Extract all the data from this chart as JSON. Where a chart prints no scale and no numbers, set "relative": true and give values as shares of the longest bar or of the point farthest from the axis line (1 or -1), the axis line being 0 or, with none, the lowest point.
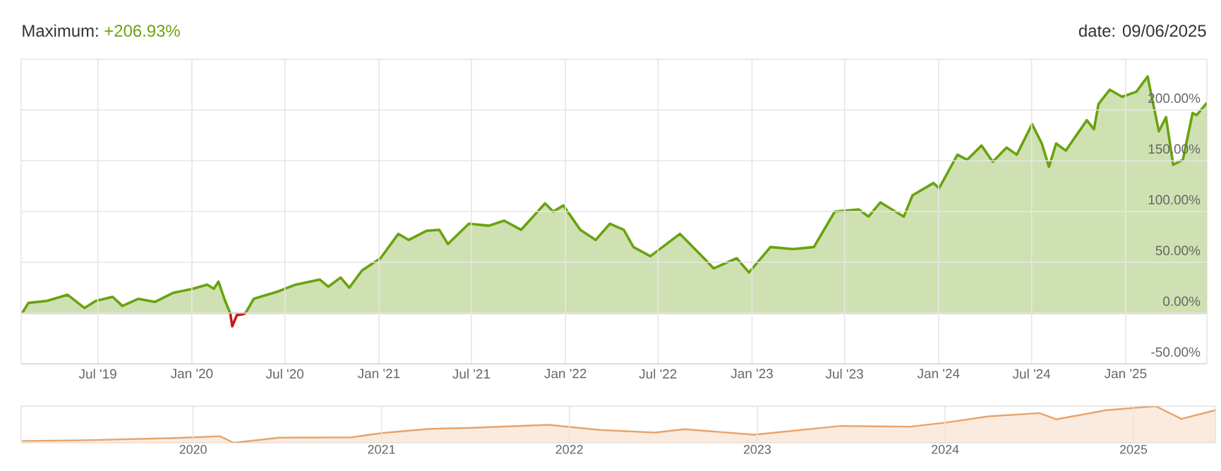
{
  "chart_data": [
    {
      "type": "area",
      "title": "Maximum:",
      "subtitle": "+206.93%",
      "annotations": [
        "date: 09/06/2025"
      ],
      "x": [
        "2019-02-03",
        "2019-02-15",
        "2019-03-23",
        "2019-05-03",
        "2019-06-05",
        "2019-06-27",
        "2019-07-30",
        "2019-08-18",
        "2019-09-18",
        "2019-10-21",
        "2019-11-26",
        "2020-01-03",
        "2020-01-31",
        "2020-02-13",
        "2020-02-22",
        "2020-03-06",
        "2020-03-16",
        "2020-03-20",
        "2020-03-29",
        "2020-04-11",
        "2020-04-15",
        "2020-05-01",
        "2020-06-16",
        "2020-07-22",
        "2020-09-07",
        "2020-09-24",
        "2020-10-18",
        "2020-11-04",
        "2020-11-29",
        "2021-01-04",
        "2021-02-08",
        "2021-02-28",
        "2021-04-04",
        "2021-04-29",
        "2021-05-16",
        "2021-06-26",
        "2021-08-04",
        "2021-09-03",
        "2021-10-06",
        "2021-11-22",
        "2021-12-08",
        "2021-12-28",
        "2022-01-30",
        "2022-03-01",
        "2022-03-29",
        "2022-04-25",
        "2022-05-14",
        "2022-06-16",
        "2022-08-13",
        "2022-09-29",
        "2022-10-18",
        "2022-12-02",
        "2022-12-26",
        "2023-02-06",
        "2023-03-22",
        "2023-05-02",
        "2023-06-12",
        "2023-07-29",
        "2023-08-17",
        "2023-09-09",
        "2023-10-25",
        "2023-11-11",
        "2023-12-22",
        "2024-01-02",
        "2024-02-07",
        "2024-02-26",
        "2024-03-25",
        "2024-04-16",
        "2024-05-13",
        "2024-06-02",
        "2024-07-02",
        "2024-07-21",
        "2024-08-04",
        "2024-08-18",
        "2024-09-06",
        "2024-10-17",
        "2024-10-31",
        "2024-11-09",
        "2024-12-01",
        "2024-12-25",
        "2025-01-22",
        "2025-02-13",
        "2025-03-07",
        "2025-03-21",
        "2025-04-04",
        "2025-04-23",
        "2025-05-12",
        "2025-05-20",
        "2025-06-09"
      ],
      "series": [
        {
          "color": "#6aa20e",
          "values": [
            0,
            10,
            12,
            18,
            5,
            12,
            16,
            7,
            14,
            11,
            20,
            24,
            28,
            24,
            31,
            12,
            0,
            null,
            null,
            null,
            0,
            14,
            21,
            28,
            33,
            26,
            35,
            25,
            42,
            54,
            78,
            72,
            81,
            82,
            68,
            88,
            86,
            91,
            82,
            108,
            100,
            106,
            82,
            72,
            88,
            82,
            65,
            56,
            78,
            54,
            44,
            54,
            40,
            65,
            63,
            65,
            100,
            102,
            95,
            109,
            95,
            116,
            128,
            123,
            156,
            151,
            165,
            149,
            163,
            156,
            186,
            167,
            144,
            167,
            160,
            190,
            181,
            206,
            220,
            213,
            218,
            233,
            179,
            193,
            146,
            151,
            197,
            195,
            207
          ]
        },
        {
          "type": "line",
          "color": "#c41a1a",
          "x": [
            "2020-03-16",
            "2020-03-20",
            "2020-03-29",
            "2020-04-11",
            "2020-04-15"
          ],
          "values": [
            0,
            -13,
            -2,
            -1,
            0
          ]
        }
      ],
      "xlim": [
        "2019-02-01",
        "2025-06-09"
      ],
      "xticks": [
        {
          "value": "2019-07-01",
          "label": "Jul '19"
        },
        {
          "value": "2020-01-01",
          "label": "Jan '20"
        },
        {
          "value": "2020-07-01",
          "label": "Jul '20"
        },
        {
          "value": "2021-01-01",
          "label": "Jan '21"
        },
        {
          "value": "2021-07-01",
          "label": "Jul '21"
        },
        {
          "value": "2022-01-01",
          "label": "Jan '22"
        },
        {
          "value": "2022-07-01",
          "label": "Jul '22"
        },
        {
          "value": "2023-01-01",
          "label": "Jan '23"
        },
        {
          "value": "2023-07-01",
          "label": "Jul '23"
        },
        {
          "value": "2024-01-01",
          "label": "Jan '24"
        },
        {
          "value": "2024-07-01",
          "label": "Jul '24"
        },
        {
          "value": "2025-01-01",
          "label": "Jan '25"
        }
      ],
      "ylim": [
        -50,
        250
      ],
      "yticks": [
        {
          "value": -50,
          "label": "-50.00%"
        },
        {
          "value": 0,
          "label": "0.00%"
        },
        {
          "value": 50,
          "label": "50.00%"
        },
        {
          "value": 100,
          "label": "100.00%"
        },
        {
          "value": 150,
          "label": "150.00%"
        },
        {
          "value": 200,
          "label": "200.00%"
        }
      ],
      "grid": true,
      "ref_lines": [
        {
          "axis": "y",
          "value": 0,
          "color": "#b0b0b0"
        }
      ]
    },
    {
      "type": "area",
      "relative": true,
      "tick_labels": "x",
      "grid": "x",
      "x": [
        "2019-02-03",
        "2019-06-05",
        "2019-11-26",
        "2020-02-22",
        "2020-03-20",
        "2020-06-16",
        "2020-11-04",
        "2021-01-04",
        "2021-04-04",
        "2021-06-26",
        "2021-11-22",
        "2022-03-01",
        "2022-06-16",
        "2022-08-13",
        "2022-12-26",
        "2023-06-12",
        "2023-10-25",
        "2024-01-02",
        "2024-03-25",
        "2024-07-02",
        "2024-08-04",
        "2024-11-09",
        "2025-02-13",
        "2025-04-04",
        "2025-06-09"
      ],
      "series": [
        {
          "color": "#e8a36a",
          "values": [
            0.05,
            0.07,
            0.13,
            0.18,
            0,
            0.14,
            0.15,
            0.27,
            0.38,
            0.41,
            0.49,
            0.35,
            0.28,
            0.37,
            0.22,
            0.46,
            0.44,
            0.55,
            0.72,
            0.81,
            0.64,
            0.89,
            1,
            0.65,
            0.89
          ]
        }
      ],
      "xlim": [
        "2019-02-01",
        "2025-06-09"
      ],
      "xticks": [
        {
          "value": "2020-01-01",
          "label": "2020"
        },
        {
          "value": "2021-01-01",
          "label": "2021"
        },
        {
          "value": "2022-01-01",
          "label": "2022"
        },
        {
          "value": "2023-01-01",
          "label": "2023"
        },
        {
          "value": "2024-01-01",
          "label": "2024"
        },
        {
          "value": "2025-01-01",
          "label": "2025"
        }
      ]
    }
  ]
}
